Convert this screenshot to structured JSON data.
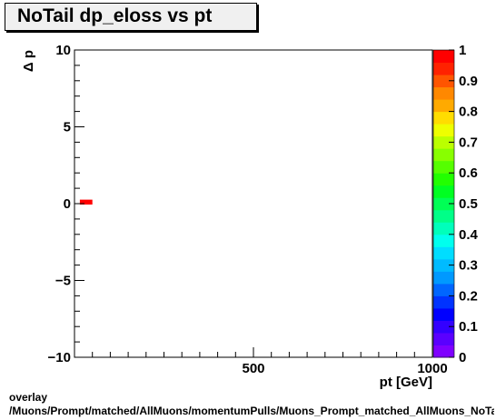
{
  "chart_data": {
    "type": "heatmap",
    "title": "NoTail dp_eloss vs pt",
    "xlabel": "pt [GeV]",
    "ylabel": "Δ p",
    "xlim": [
      0,
      1000
    ],
    "ylim": [
      -10,
      10
    ],
    "x_ticks": [
      500,
      1000
    ],
    "y_ticks": [
      -10,
      -5,
      0,
      5,
      10
    ],
    "x_tick_labels": [
      "500",
      "1000"
    ],
    "y_tick_labels": [
      "−10",
      "−5",
      "0",
      "5",
      "10"
    ],
    "colorbar": {
      "range": [
        0,
        1
      ],
      "ticks": [
        "0",
        "0.1",
        "0.2",
        "0.3",
        "0.4",
        "0.5",
        "0.6",
        "0.7",
        "0.8",
        "0.9",
        "1"
      ],
      "colors": [
        "#7f00ff",
        "#5a00ff",
        "#3300ff",
        "#0000ff",
        "#0033ff",
        "#0066ff",
        "#0099ff",
        "#00bbff",
        "#00ddff",
        "#00ffee",
        "#00ffbb",
        "#00ff88",
        "#00ff55",
        "#00ff22",
        "#22ff00",
        "#55ff00",
        "#88ff00",
        "#bbff00",
        "#eeff00",
        "#ffdd00",
        "#ffaa00",
        "#ff8800",
        "#ff5500",
        "#ff2200",
        "#ff0000"
      ]
    },
    "cells": [
      {
        "x0": 15,
        "x1": 50,
        "y0": 0.0,
        "y1": 0.2,
        "value": 1.0
      }
    ],
    "grid": false
  },
  "footer": {
    "line1": "overlay",
    "line2": "/Muons/Prompt/matched/AllMuons/momentumPulls/Muons_Prompt_matched_AllMuons_NoTail_dp_eloss_vs_pt"
  }
}
